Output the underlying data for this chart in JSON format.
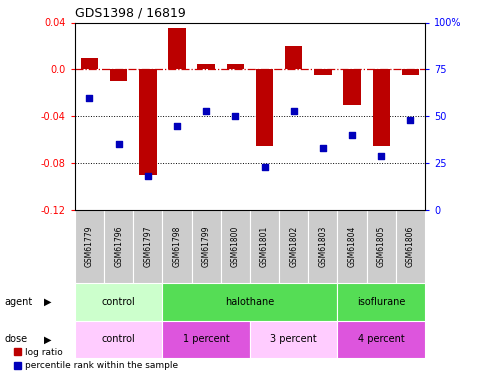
{
  "title": "GDS1398 / 16819",
  "samples": [
    "GSM61779",
    "GSM61796",
    "GSM61797",
    "GSM61798",
    "GSM61799",
    "GSM61800",
    "GSM61801",
    "GSM61802",
    "GSM61803",
    "GSM61804",
    "GSM61805",
    "GSM61806"
  ],
  "log_ratio": [
    0.01,
    -0.01,
    -0.09,
    0.035,
    0.005,
    0.005,
    -0.065,
    0.02,
    -0.005,
    -0.03,
    -0.065,
    -0.005
  ],
  "percentile": [
    60,
    35,
    18,
    45,
    53,
    50,
    23,
    53,
    33,
    40,
    29,
    48
  ],
  "ylim_left": [
    -0.12,
    0.04
  ],
  "ylim_right": [
    0,
    100
  ],
  "yticks_left": [
    -0.12,
    -0.08,
    -0.04,
    0.0,
    0.04
  ],
  "yticks_right": [
    0,
    25,
    50,
    75,
    100
  ],
  "agent_groups": [
    {
      "label": "control",
      "start": 0,
      "end": 3,
      "color": "#ccffcc"
    },
    {
      "label": "halothane",
      "start": 3,
      "end": 9,
      "color": "#55dd55"
    },
    {
      "label": "isoflurane",
      "start": 9,
      "end": 12,
      "color": "#55dd55"
    }
  ],
  "dose_groups": [
    {
      "label": "control",
      "start": 0,
      "end": 3,
      "color": "#ffccff"
    },
    {
      "label": "1 percent",
      "start": 3,
      "end": 6,
      "color": "#dd55dd"
    },
    {
      "label": "3 percent",
      "start": 6,
      "end": 9,
      "color": "#ffccff"
    },
    {
      "label": "4 percent",
      "start": 9,
      "end": 12,
      "color": "#dd55dd"
    }
  ],
  "bar_color": "#bb0000",
  "dot_color": "#0000bb",
  "ref_line_color": "#cc0000",
  "bar_width": 0.6,
  "legend_items": [
    {
      "label": "log ratio",
      "color": "#bb0000"
    },
    {
      "label": "percentile rank within the sample",
      "color": "#0000bb"
    }
  ],
  "sample_bg": "#cccccc",
  "sample_border": "#ffffff"
}
